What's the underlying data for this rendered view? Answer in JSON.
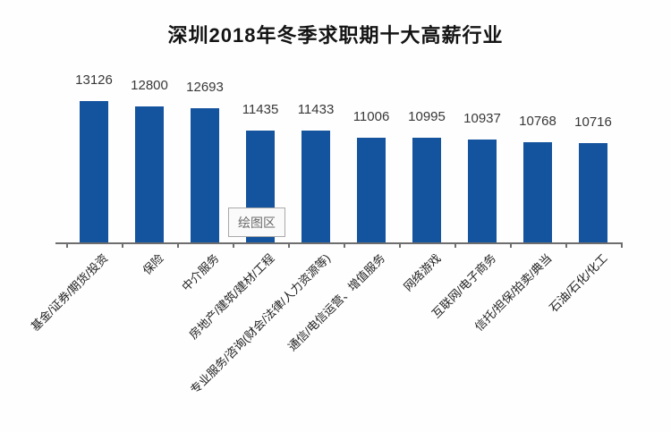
{
  "title": "深圳2018年冬季求职期十大高薪行业",
  "tooltip": {
    "text": "绘图区"
  },
  "colors": {
    "bar": "#14539D",
    "axis": "#6e6e6e",
    "title_text": "#141414",
    "value_label": "#383838",
    "tooltip_bg": "#fafafa",
    "tooltip_border": "#a9a9a9",
    "tooltip_text": "#6a6a6a"
  },
  "chart_data": {
    "type": "bar",
    "title": "深圳2018年冬季求职期十大高薪行业",
    "categories": [
      "基金/证券/期货/投资",
      "保险",
      "中介服务",
      "房地产/建筑/建材/工程",
      "专业服务/咨询(财会/法律/人力资源等)",
      "通信/电信运营、增值服务",
      "网络游戏",
      "互联网/电子商务",
      "信托/担保/拍卖/典当",
      "石油/石化/化工"
    ],
    "values": [
      13126,
      12800,
      12693,
      11435,
      11433,
      11006,
      10995,
      10937,
      10768,
      10716
    ],
    "xlabel": "",
    "ylabel": "",
    "ylim": [
      5000,
      13500
    ],
    "grid": false,
    "legend": "none",
    "data_labels": true,
    "bar_color": "#14539D",
    "category_label_rotation_deg": 45
  }
}
